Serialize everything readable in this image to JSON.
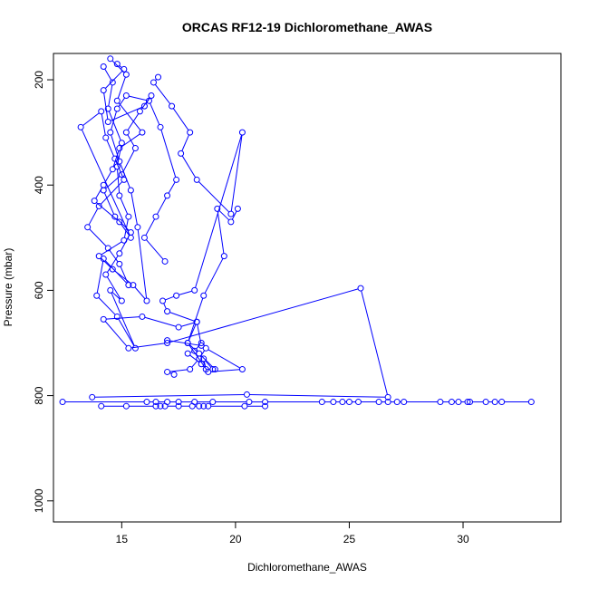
{
  "chart_data": {
    "type": "scatter",
    "title": "ORCAS RF12-19 Dichloromethane_AWAS",
    "xlabel": "Dichloromethane_AWAS",
    "ylabel": "Pressure (mbar)",
    "xlim": [
      12,
      34.3
    ],
    "ylim": [
      1040,
      150
    ],
    "y_reversed": true,
    "grid": false,
    "legend": "none",
    "x_ticks": [
      15,
      20,
      25,
      30
    ],
    "y_ticks": [
      200,
      400,
      600,
      800,
      1000
    ],
    "point_style": "open-circle",
    "connected": true,
    "color": "#0000ff",
    "series": [
      {
        "x": [
          14.5,
          15.2,
          14.8,
          15.9,
          14.9,
          14.6,
          14.2,
          13.8,
          14.9,
          15.4,
          13.2,
          14.1,
          14.3,
          14.7,
          15.1,
          14.0,
          13.5,
          14.4,
          14.9,
          15.3,
          14.2,
          13.9,
          14.8,
          15.6,
          14.5,
          15.0,
          14.3,
          14.9,
          15.4,
          14.7,
          14.2,
          15.0,
          15.6,
          15.2,
          15.8,
          16.3,
          16.0,
          14.4,
          14.2,
          15.1,
          14.8
        ],
        "y": [
          160,
          190,
          240,
          300,
          330,
          370,
          400,
          430,
          470,
          500,
          290,
          260,
          310,
          350,
          390,
          440,
          480,
          520,
          550,
          590,
          540,
          610,
          650,
          710,
          600,
          620,
          570,
          530,
          490,
          460,
          410,
          380,
          330,
          300,
          260,
          230,
          250,
          280,
          220,
          180,
          170
        ]
      },
      {
        "x": [
          14.2,
          14.6,
          14.4,
          15.0,
          14.8,
          14.9,
          15.3,
          15.1,
          14.0,
          14.6,
          15.5,
          16.1,
          15.7,
          15.4,
          14.9,
          14.5,
          14.8,
          15.2,
          16.2,
          16.7,
          17.4,
          17.0,
          16.5,
          16.0,
          16.9
        ],
        "y": [
          175,
          205,
          255,
          320,
          365,
          420,
          460,
          505,
          535,
          560,
          590,
          620,
          480,
          410,
          355,
          300,
          255,
          230,
          240,
          290,
          390,
          420,
          460,
          500,
          545
        ]
      },
      {
        "x": [
          16.6,
          16.4,
          17.2,
          18.0,
          17.6,
          18.3,
          19.8,
          20.3,
          18.2,
          17.4,
          16.8,
          17.0,
          18.3,
          17.9,
          18.6,
          19.5,
          19.2,
          19.8,
          20.1
        ],
        "y": [
          195,
          205,
          250,
          300,
          340,
          390,
          455,
          300,
          600,
          610,
          620,
          640,
          660,
          700,
          610,
          535,
          445,
          470,
          445
        ]
      },
      {
        "x": [
          18.5,
          18.2,
          17.9,
          18.5,
          18.7,
          18.6,
          19.0,
          19.1,
          18.4,
          17.9,
          18.8,
          20.3,
          18.7,
          18.4,
          18.0,
          17.0,
          17.3
        ],
        "y": [
          700,
          715,
          720,
          740,
          750,
          730,
          750,
          750,
          720,
          700,
          755,
          750,
          710,
          730,
          750,
          755,
          760
        ]
      },
      {
        "x": [
          12.4,
          16.1,
          16.5,
          17.0,
          17.5,
          18.2,
          19.0,
          20.6,
          21.3,
          23.8,
          24.3,
          24.7,
          25.0,
          25.4,
          26.3,
          26.7,
          27.1,
          27.4,
          29.0,
          29.5,
          29.8,
          30.2,
          30.3,
          31.0,
          31.4,
          31.7,
          33.0
        ],
        "y": [
          812,
          812,
          812,
          812,
          812,
          812,
          812,
          812,
          812,
          812,
          812,
          812,
          812,
          812,
          812,
          812,
          812,
          812,
          812,
          812,
          812,
          812,
          812,
          812,
          812,
          812,
          812
        ]
      },
      {
        "x": [
          14.1,
          15.2,
          16.5,
          16.7,
          16.9,
          17.5,
          18.1,
          18.4,
          18.6,
          18.8,
          20.4,
          21.3
        ],
        "y": [
          820,
          820,
          820,
          820,
          820,
          820,
          820,
          820,
          820,
          820,
          820,
          820
        ]
      },
      {
        "x": [
          13.7,
          20.5,
          26.7,
          25.5,
          17.0,
          15.3,
          14.2,
          15.9,
          17.5,
          18.3,
          18.5,
          17.0
        ],
        "y": [
          803,
          798,
          803,
          596,
          700,
          710,
          655,
          650,
          670,
          660,
          705,
          695
        ]
      }
    ]
  }
}
